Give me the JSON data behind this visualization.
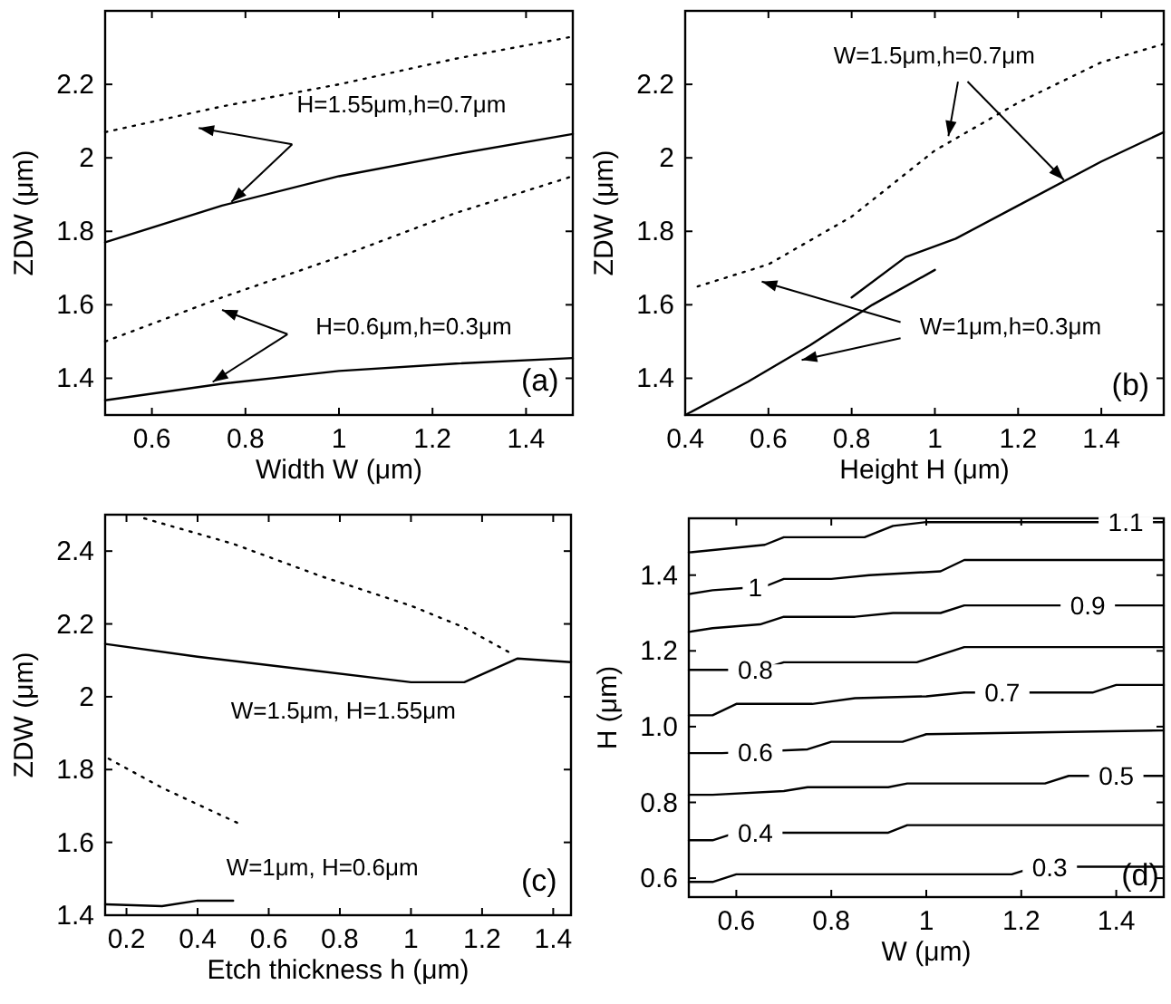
{
  "chart_data": [
    {
      "type": "line",
      "xlabel": "Width W (μm)",
      "ylabel": "ZDW (μm)",
      "xlim": [
        0.5,
        1.5
      ],
      "ylim": [
        1.3,
        2.4
      ],
      "xticks": [
        0.6,
        0.8,
        1,
        1.2,
        1.4
      ],
      "yticks": [
        1.4,
        1.6,
        1.8,
        2,
        2.2
      ],
      "grid": false,
      "annotations": [
        {
          "text": "H=1.55μm,h=0.7μm",
          "x": 0.77,
          "y": 1.88
        },
        {
          "text": "H=0.6μm,h=0.3μm",
          "x": 0.73,
          "y": 1.39
        },
        "(a)"
      ],
      "series": [
        {
          "color": "#000000",
          "line_style": "dotted",
          "x": [
            0.5,
            0.75,
            1.0,
            1.25,
            1.5
          ],
          "values": [
            2.07,
            2.14,
            2.2,
            2.27,
            2.33
          ]
        },
        {
          "color": "#000000",
          "line_style": "solid",
          "x": [
            0.5,
            0.75,
            1.0,
            1.25,
            1.5
          ],
          "values": [
            1.77,
            1.87,
            1.95,
            2.01,
            2.065
          ]
        },
        {
          "color": "#000000",
          "line_style": "dotted",
          "x": [
            0.5,
            0.75,
            1.0,
            1.25,
            1.5
          ],
          "values": [
            1.5,
            1.62,
            1.73,
            1.85,
            1.95
          ]
        },
        {
          "color": "#000000",
          "line_style": "solid",
          "x": [
            0.5,
            0.75,
            1.0,
            1.25,
            1.5
          ],
          "values": [
            1.34,
            1.385,
            1.42,
            1.44,
            1.455
          ]
        }
      ]
    },
    {
      "type": "line",
      "xlabel": "Height H (μm)",
      "ylabel": "ZDW (μm)",
      "xlim": [
        0.4,
        1.55
      ],
      "ylim": [
        1.3,
        2.4
      ],
      "xticks": [
        0.4,
        0.6,
        0.8,
        1,
        1.2,
        1.4
      ],
      "yticks": [
        1.4,
        1.6,
        1.8,
        2,
        2.2
      ],
      "grid": false,
      "annotations": [
        {
          "text": "W=1.5μm,h=0.7μm",
          "x": 1.31,
          "y": 1.94
        },
        {
          "text": "W=1μm,h=0.3μm",
          "x": 0.68,
          "y": 1.45
        },
        "(b)"
      ],
      "series": [
        {
          "color": "#000000",
          "line_style": "dotted",
          "x": [
            0.43,
            0.6,
            0.8,
            1.0,
            1.2,
            1.4,
            1.55
          ],
          "values": [
            1.65,
            1.71,
            1.84,
            2.02,
            2.15,
            2.26,
            2.31
          ]
        },
        {
          "color": "#000000",
          "line_style": "solid",
          "x": [
            0.4,
            0.55,
            0.7,
            0.85,
            1.0
          ],
          "values": [
            1.3,
            1.39,
            1.49,
            1.6,
            1.695
          ]
        },
        {
          "color": "#000000",
          "line_style": "solid",
          "x": [
            0.8,
            0.93,
            1.05,
            1.2,
            1.4,
            1.55
          ],
          "values": [
            1.62,
            1.73,
            1.78,
            1.87,
            1.99,
            2.07
          ]
        }
      ]
    },
    {
      "type": "line",
      "xlabel": "Etch thickness h (μm)",
      "ylabel": "ZDW (μm)",
      "xlim": [
        0.14,
        1.45
      ],
      "ylim": [
        1.4,
        2.5
      ],
      "xticks": [
        0.2,
        0.4,
        0.6,
        0.8,
        1,
        1.2,
        1.4
      ],
      "yticks": [
        1.4,
        1.6,
        1.8,
        2,
        2.2,
        2.4
      ],
      "grid": false,
      "annotations": [
        "W=1.5μm, H=1.55μm",
        "W=1μm, H=0.6μm",
        "(c)"
      ],
      "series": [
        {
          "color": "#000000",
          "line_style": "dotted",
          "x": [
            0.25,
            0.5,
            0.75,
            1.0,
            1.15,
            1.28
          ],
          "values": [
            2.49,
            2.42,
            2.33,
            2.25,
            2.19,
            2.12
          ]
        },
        {
          "color": "#000000",
          "line_style": "solid",
          "x": [
            0.14,
            0.4,
            0.7,
            1.0,
            1.15,
            1.3,
            1.45
          ],
          "values": [
            2.145,
            2.11,
            2.075,
            2.04,
            2.04,
            2.105,
            2.095
          ]
        },
        {
          "color": "#000000",
          "line_style": "dotted",
          "x": [
            0.15,
            0.3,
            0.52
          ],
          "values": [
            1.83,
            1.75,
            1.65
          ]
        },
        {
          "color": "#000000",
          "line_style": "solid",
          "x": [
            0.14,
            0.3,
            0.4,
            0.5
          ],
          "values": [
            1.43,
            1.425,
            1.44,
            1.44
          ]
        }
      ]
    },
    {
      "type": "line",
      "xlabel": "W (μm)",
      "ylabel": "H (μm)",
      "xlim": [
        0.5,
        1.5
      ],
      "ylim": [
        0.55,
        1.55
      ],
      "xticks": [
        0.6,
        0.8,
        1,
        1.2,
        1.4
      ],
      "yticks": [
        0.6,
        0.8,
        {
          "value": 1,
          "label": "1.0"
        },
        1.2,
        1.4
      ],
      "grid": false,
      "annotations": [
        "(d)"
      ],
      "series": [
        {
          "name": "0.3",
          "color": "#000000",
          "line_style": "solid",
          "x": [
            0.5,
            0.55,
            0.6,
            1.18,
            1.23,
            1.5
          ],
          "values": [
            0.59,
            0.59,
            0.61,
            0.61,
            0.63,
            0.63
          ]
        },
        {
          "name": "0.4",
          "color": "#000000",
          "line_style": "solid",
          "x": [
            0.5,
            0.55,
            0.6,
            0.92,
            0.96,
            1.5
          ],
          "values": [
            0.7,
            0.7,
            0.72,
            0.72,
            0.74,
            0.74
          ]
        },
        {
          "name": "0.5",
          "color": "#000000",
          "line_style": "solid",
          "x": [
            0.5,
            0.55,
            0.7,
            0.75,
            0.92,
            0.96,
            1.25,
            1.3,
            1.5
          ],
          "values": [
            0.82,
            0.82,
            0.83,
            0.84,
            0.84,
            0.85,
            0.85,
            0.87,
            0.87
          ]
        },
        {
          "name": "0.6",
          "color": "#000000",
          "line_style": "solid",
          "x": [
            0.5,
            0.57,
            0.75,
            0.8,
            0.95,
            1.0,
            1.5
          ],
          "values": [
            0.93,
            0.93,
            0.94,
            0.96,
            0.96,
            0.98,
            0.99
          ]
        },
        {
          "name": "0.7",
          "color": "#000000",
          "line_style": "solid",
          "x": [
            0.5,
            0.55,
            0.6,
            0.76,
            0.85,
            1.0,
            1.08,
            1.35,
            1.4,
            1.5
          ],
          "values": [
            1.03,
            1.03,
            1.06,
            1.06,
            1.075,
            1.08,
            1.09,
            1.09,
            1.11,
            1.11
          ]
        },
        {
          "name": "0.8",
          "color": "#000000",
          "line_style": "solid",
          "x": [
            0.5,
            0.55,
            0.65,
            0.7,
            0.98,
            1.08,
            1.5
          ],
          "values": [
            1.15,
            1.15,
            1.15,
            1.17,
            1.17,
            1.21,
            1.21
          ]
        },
        {
          "name": "0.9",
          "color": "#000000",
          "line_style": "solid",
          "x": [
            0.5,
            0.55,
            0.65,
            0.7,
            0.85,
            0.93,
            1.03,
            1.08,
            1.5
          ],
          "values": [
            1.25,
            1.26,
            1.27,
            1.29,
            1.29,
            1.3,
            1.3,
            1.32,
            1.32
          ]
        },
        {
          "name": "1",
          "color": "#000000",
          "line_style": "solid",
          "x": [
            0.5,
            0.55,
            0.66,
            0.7,
            0.8,
            0.88,
            1.03,
            1.08,
            1.5
          ],
          "values": [
            1.35,
            1.36,
            1.37,
            1.39,
            1.39,
            1.4,
            1.41,
            1.44,
            1.44
          ]
        },
        {
          "name": "1.1",
          "color": "#000000",
          "line_style": "solid",
          "x": [
            0.5,
            0.66,
            0.7,
            0.87,
            0.93,
            1.0,
            1.5
          ],
          "values": [
            1.46,
            1.48,
            1.5,
            1.5,
            1.53,
            1.54,
            1.54
          ]
        }
      ]
    }
  ]
}
